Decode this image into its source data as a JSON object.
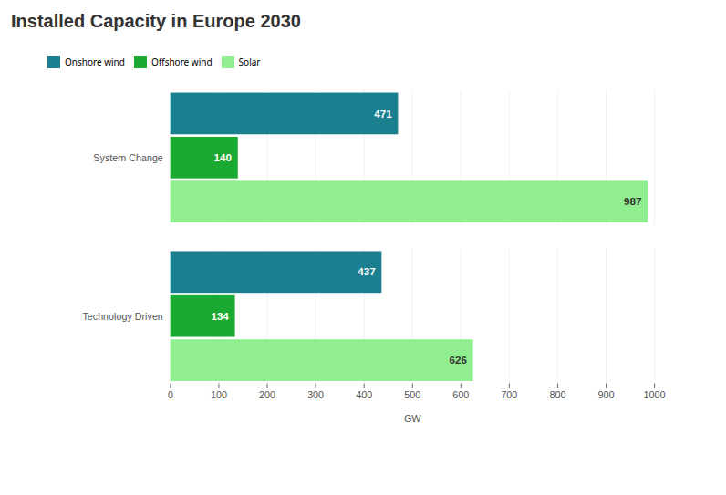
{
  "chart_data": {
    "type": "bar",
    "orientation": "horizontal",
    "title": "Installed Capacity in Europe 2030",
    "xlabel": "GW",
    "categories": [
      "System Change",
      "Technology Driven"
    ],
    "series": [
      {
        "name": "Onshore wind",
        "color": "#1a7f8e",
        "values": [
          471,
          437
        ]
      },
      {
        "name": "Offshore wind",
        "color": "#1aaa32",
        "values": [
          140,
          134
        ]
      },
      {
        "name": "Solar",
        "color": "#90ee90",
        "values": [
          987,
          626
        ]
      }
    ],
    "xlim": [
      0,
      1000
    ],
    "xticks": [
      0,
      100,
      200,
      300,
      400,
      500,
      600,
      700,
      800,
      900,
      1000
    ],
    "grid": true,
    "legend": "top",
    "data_labels": true
  }
}
